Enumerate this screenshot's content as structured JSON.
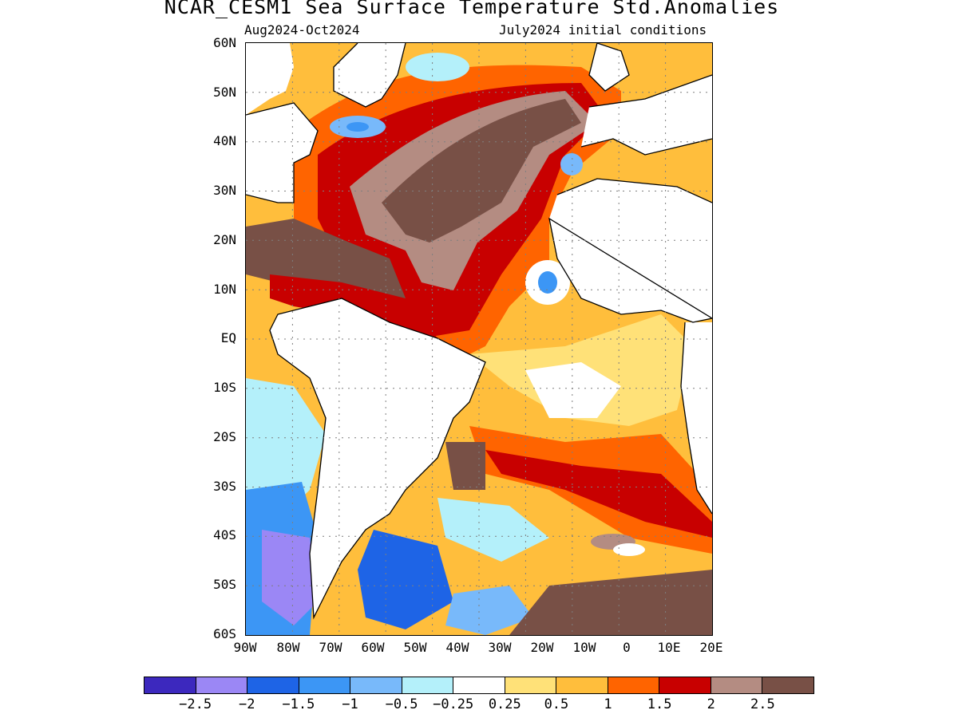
{
  "title": "NCAR_CESM1 Sea Surface Temperature Std.Anomalies",
  "subtitle_left": "Aug2024-Oct2024",
  "subtitle_right": "July2024 initial conditions",
  "lat_labels": [
    "60N",
    "50N",
    "40N",
    "30N",
    "20N",
    "10N",
    "EQ",
    "10S",
    "20S",
    "30S",
    "40S",
    "50S",
    "60S"
  ],
  "lon_labels": [
    "90W",
    "80W",
    "70W",
    "60W",
    "50W",
    "40W",
    "30W",
    "20W",
    "10W",
    "0",
    "10E",
    "20E"
  ],
  "colorbar": {
    "colors": [
      "#3c28be",
      "#9b87f5",
      "#1e64e6",
      "#3c96f5",
      "#78b9fa",
      "#b4f0fa",
      "#ffffff",
      "#ffe178",
      "#ffbe3c",
      "#ff6400",
      "#c80000",
      "#b48c82",
      "#785046"
    ],
    "labels": [
      "-2.5",
      "-2",
      "-1.5",
      "-1",
      "-0.5",
      "-0.25",
      "0.25",
      "0.5",
      "1",
      "1.5",
      "2",
      "2.5"
    ]
  }
}
